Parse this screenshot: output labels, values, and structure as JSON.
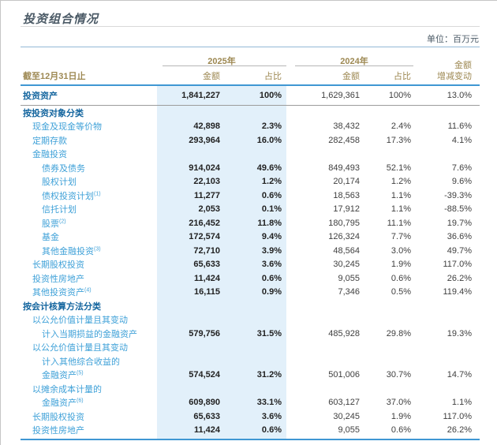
{
  "page": {
    "title": "投资组合情况",
    "unit_note": "单位：百万元"
  },
  "colors": {
    "accent_blue": "#3f97d3",
    "band": "#e2f0fa",
    "label_blue": "#3fa1d8",
    "section_blue": "#15669f",
    "gold": "#9d8852",
    "title_color": "#4b5a66",
    "val_dark": "#222222",
    "val_gray": "#3f3f3f",
    "line_gray": "#b5b5b5",
    "divider_gray": "#9c9c9c",
    "rule_light": "#d9d9d9",
    "rule_blue_light": "#93b9d6"
  },
  "table": {
    "row_header": "截至12月31日止",
    "year_2025": "2025年",
    "year_2024": "2024年",
    "col_amount": "金额",
    "col_share": "占比",
    "change_header_line1": "金额",
    "change_header_line2": "增减变动",
    "rows": [
      {
        "label": "投资资产",
        "indent": 0,
        "bold": true,
        "total": true,
        "a25": "1,841,227",
        "s25": "100%",
        "a24": "1,629,361",
        "s24": "100%",
        "chg": "13.0%"
      },
      {
        "label": "按投资对象分类",
        "indent": 0,
        "bold": true
      },
      {
        "label": "现金及现金等价物",
        "indent": 1,
        "a25": "42,898",
        "s25": "2.3%",
        "a24": "38,432",
        "s24": "2.4%",
        "chg": "11.6%"
      },
      {
        "label": "定期存款",
        "indent": 1,
        "a25": "293,964",
        "s25": "16.0%",
        "a24": "282,458",
        "s24": "17.3%",
        "chg": "4.1%"
      },
      {
        "label": "金融投资",
        "indent": 1
      },
      {
        "label": "债券及债务",
        "indent": 2,
        "a25": "914,024",
        "s25": "49.6%",
        "a24": "849,493",
        "s24": "52.1%",
        "chg": "7.6%"
      },
      {
        "label": "股权计划",
        "indent": 2,
        "a25": "22,103",
        "s25": "1.2%",
        "a24": "20,174",
        "s24": "1.2%",
        "chg": "9.6%"
      },
      {
        "label": "债权投资计划",
        "sup": "(1)",
        "indent": 2,
        "a25": "11,277",
        "s25": "0.6%",
        "a24": "18,563",
        "s24": "1.1%",
        "chg": "-39.3%"
      },
      {
        "label": "信托计划",
        "indent": 2,
        "a25": "2,053",
        "s25": "0.1%",
        "a24": "17,912",
        "s24": "1.1%",
        "chg": "-88.5%"
      },
      {
        "label": "股票",
        "sup": "(2)",
        "indent": 2,
        "a25": "216,452",
        "s25": "11.8%",
        "a24": "180,795",
        "s24": "11.1%",
        "chg": "19.7%"
      },
      {
        "label": "基金",
        "indent": 2,
        "a25": "172,574",
        "s25": "9.4%",
        "a24": "126,324",
        "s24": "7.7%",
        "chg": "36.6%"
      },
      {
        "label": "其他金融投资",
        "sup": "(3)",
        "indent": 2,
        "a25": "72,710",
        "s25": "3.9%",
        "a24": "48,564",
        "s24": "3.0%",
        "chg": "49.7%"
      },
      {
        "label": "长期股权投资",
        "indent": 1,
        "a25": "65,633",
        "s25": "3.6%",
        "a24": "30,245",
        "s24": "1.9%",
        "chg": "117.0%"
      },
      {
        "label": "投资性房地产",
        "indent": 1,
        "a25": "11,424",
        "s25": "0.6%",
        "a24": "9,055",
        "s24": "0.6%",
        "chg": "26.2%"
      },
      {
        "label": "其他投资资产",
        "sup": "(4)",
        "indent": 1,
        "a25": "16,115",
        "s25": "0.9%",
        "a24": "7,346",
        "s24": "0.5%",
        "chg": "119.4%"
      },
      {
        "label": "按会计核算方法分类",
        "indent": 0,
        "bold": true
      },
      {
        "label": "以公允价值计量且其变动",
        "indent": 1
      },
      {
        "label": "计入当期损益的金融资产",
        "indent": 2,
        "a25": "579,756",
        "s25": "31.5%",
        "a24": "485,928",
        "s24": "29.8%",
        "chg": "19.3%"
      },
      {
        "label": "以公允价值计量且其变动",
        "indent": 1
      },
      {
        "label": "计入其他综合收益的",
        "indent": 2
      },
      {
        "label": "金融资产",
        "sup": "(5)",
        "indent": 2,
        "a25": "574,524",
        "s25": "31.2%",
        "a24": "501,006",
        "s24": "30.7%",
        "chg": "14.7%"
      },
      {
        "label": "以摊余成本计量的",
        "indent": 1
      },
      {
        "label": "金融资产",
        "sup": "(6)",
        "indent": 2,
        "a25": "609,890",
        "s25": "33.1%",
        "a24": "603,127",
        "s24": "37.0%",
        "chg": "1.1%"
      },
      {
        "label": "长期股权投资",
        "indent": 1,
        "a25": "65,633",
        "s25": "3.6%",
        "a24": "30,245",
        "s24": "1.9%",
        "chg": "117.0%"
      },
      {
        "label": "投资性房地产",
        "indent": 1,
        "a25": "11,424",
        "s25": "0.6%",
        "a24": "9,055",
        "s24": "0.6%",
        "chg": "26.2%"
      }
    ]
  }
}
